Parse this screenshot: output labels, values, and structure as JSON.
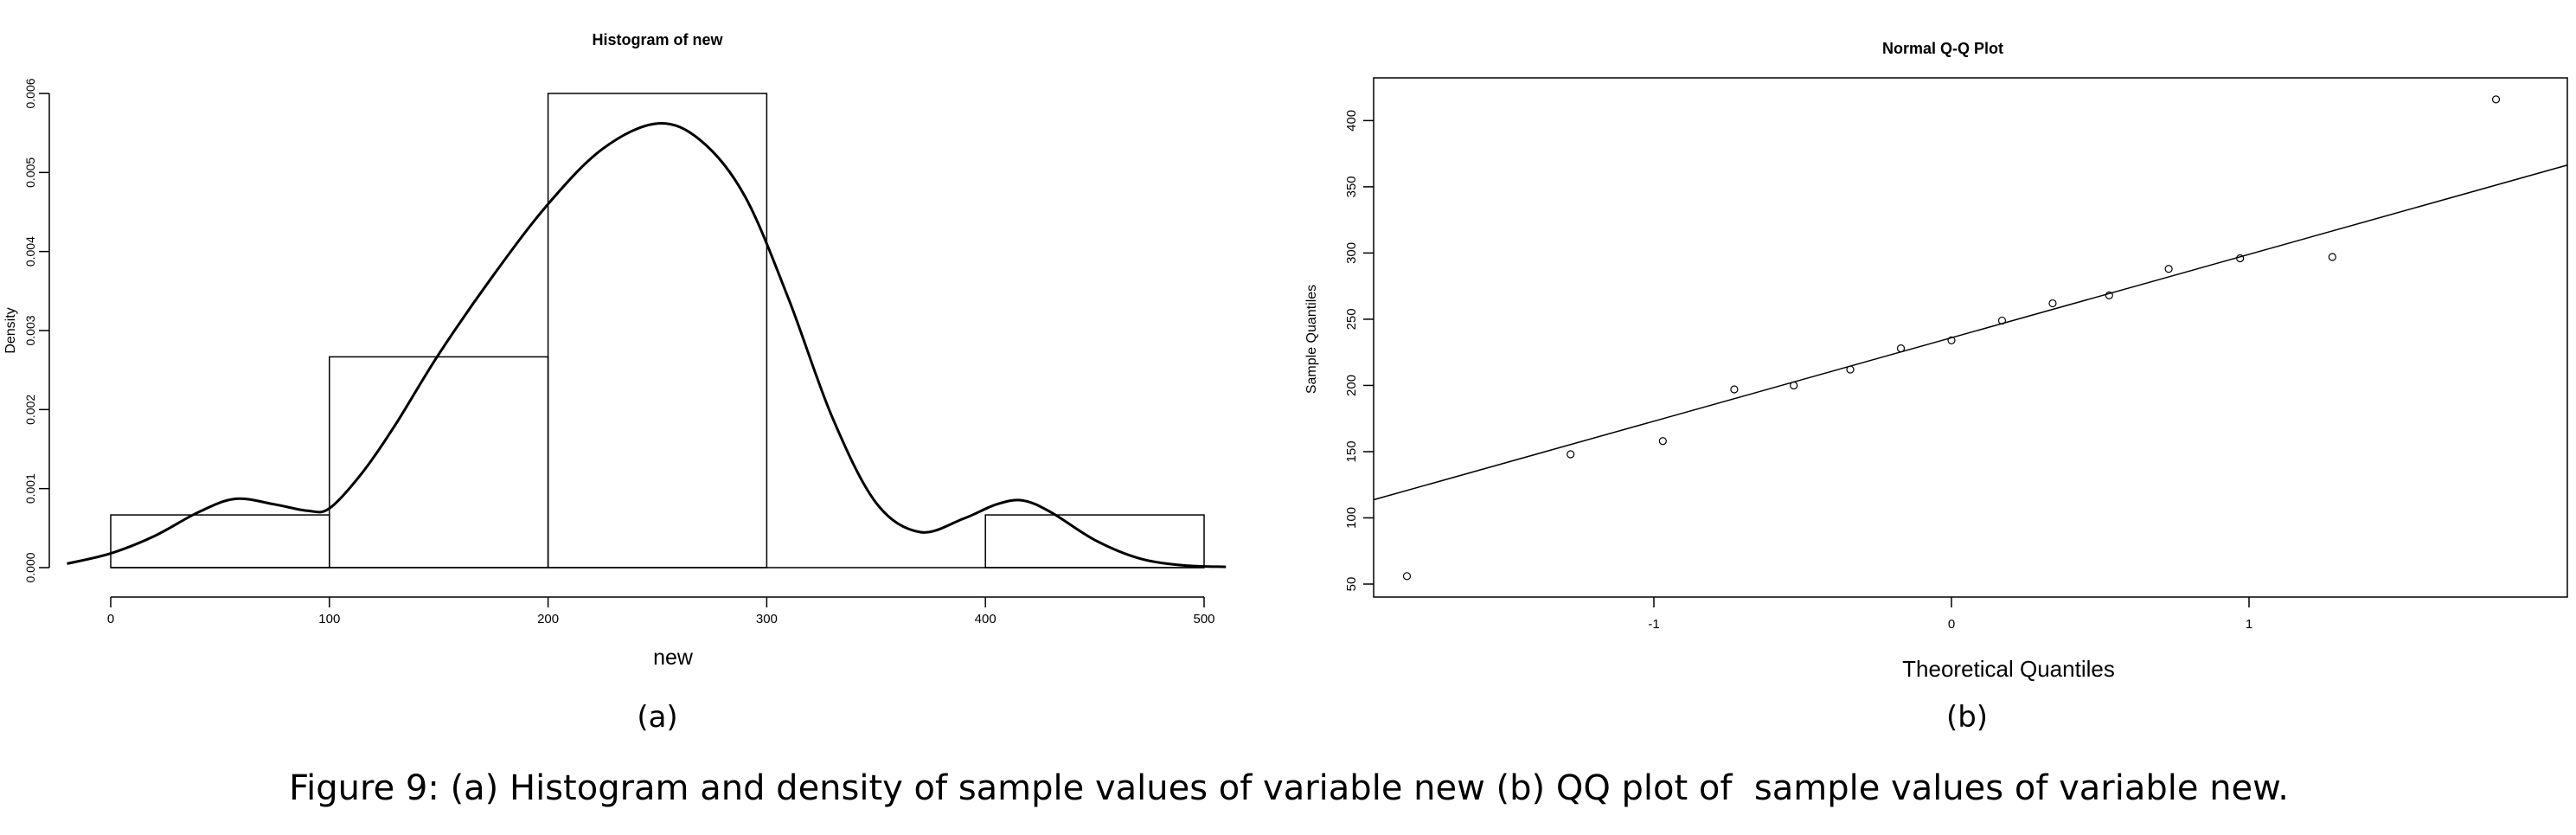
{
  "figure": {
    "caption": "Figure 9: (a) Histogram and density of sample values of variable new (b) QQ plot of  sample values of variable new.",
    "panel_a_label": "(a)",
    "panel_b_label": "(b)"
  },
  "chart_data": [
    {
      "type": "bar",
      "subtype": "histogram-with-density",
      "title": "Histogram of new",
      "xlabel": "new",
      "ylabel": "Density",
      "xlim": [
        0,
        510
      ],
      "ylim": [
        0,
        0.006
      ],
      "x_ticks": [
        "0",
        "100",
        "200",
        "300",
        "400",
        "500"
      ],
      "y_ticks": [
        "0.000",
        "0.001",
        "0.002",
        "0.003",
        "0.004",
        "0.005",
        "0.006"
      ],
      "bins": [
        {
          "from": 0,
          "to": 100,
          "density": 0.000667
        },
        {
          "from": 100,
          "to": 200,
          "density": 0.002667
        },
        {
          "from": 200,
          "to": 300,
          "density": 0.006
        },
        {
          "from": 300,
          "to": 400,
          "density": 0
        },
        {
          "from": 400,
          "to": 500,
          "density": 0.000667
        }
      ],
      "density_curve": {
        "x": [
          -20,
          0,
          20,
          40,
          57,
          75,
          90,
          100,
          115,
          130,
          150,
          175,
          200,
          225,
          250,
          270,
          290,
          310,
          330,
          350,
          370,
          390,
          405,
          417,
          430,
          450,
          470,
          490,
          510
        ],
        "y": [
          5e-05,
          0.00018,
          0.0004,
          0.0007,
          0.00087,
          0.0008,
          0.00072,
          0.00075,
          0.0012,
          0.0018,
          0.0027,
          0.0037,
          0.0046,
          0.0053,
          0.00562,
          0.0054,
          0.0047,
          0.0034,
          0.0019,
          0.00082,
          0.00045,
          0.00062,
          0.0008,
          0.00085,
          0.0007,
          0.00035,
          0.00012,
          3e-05,
          1e-05
        ]
      }
    },
    {
      "type": "scatter",
      "subtype": "qq-plot",
      "title": "Normal Q-Q Plot",
      "xlabel": "Theoretical Quantiles",
      "ylabel": "Sample Quantiles",
      "xlim": [
        -2.0,
        2.0
      ],
      "ylim": [
        45,
        420
      ],
      "x_ticks": [
        "-1",
        "0",
        "1"
      ],
      "y_ticks": [
        "50",
        "100",
        "150",
        "200",
        "250",
        "300",
        "350",
        "400"
      ],
      "points": {
        "x": [
          -1.83,
          -1.28,
          -0.97,
          -0.73,
          -0.53,
          -0.34,
          -0.17,
          0.0,
          0.17,
          0.34,
          0.53,
          0.73,
          0.97,
          1.28,
          1.83
        ],
        "y": [
          56,
          148,
          158,
          197,
          200,
          212,
          228,
          234,
          249,
          262,
          268,
          288,
          296,
          297,
          416
        ]
      },
      "reference_line": {
        "intercept": 236,
        "slope": 63
      }
    }
  ]
}
